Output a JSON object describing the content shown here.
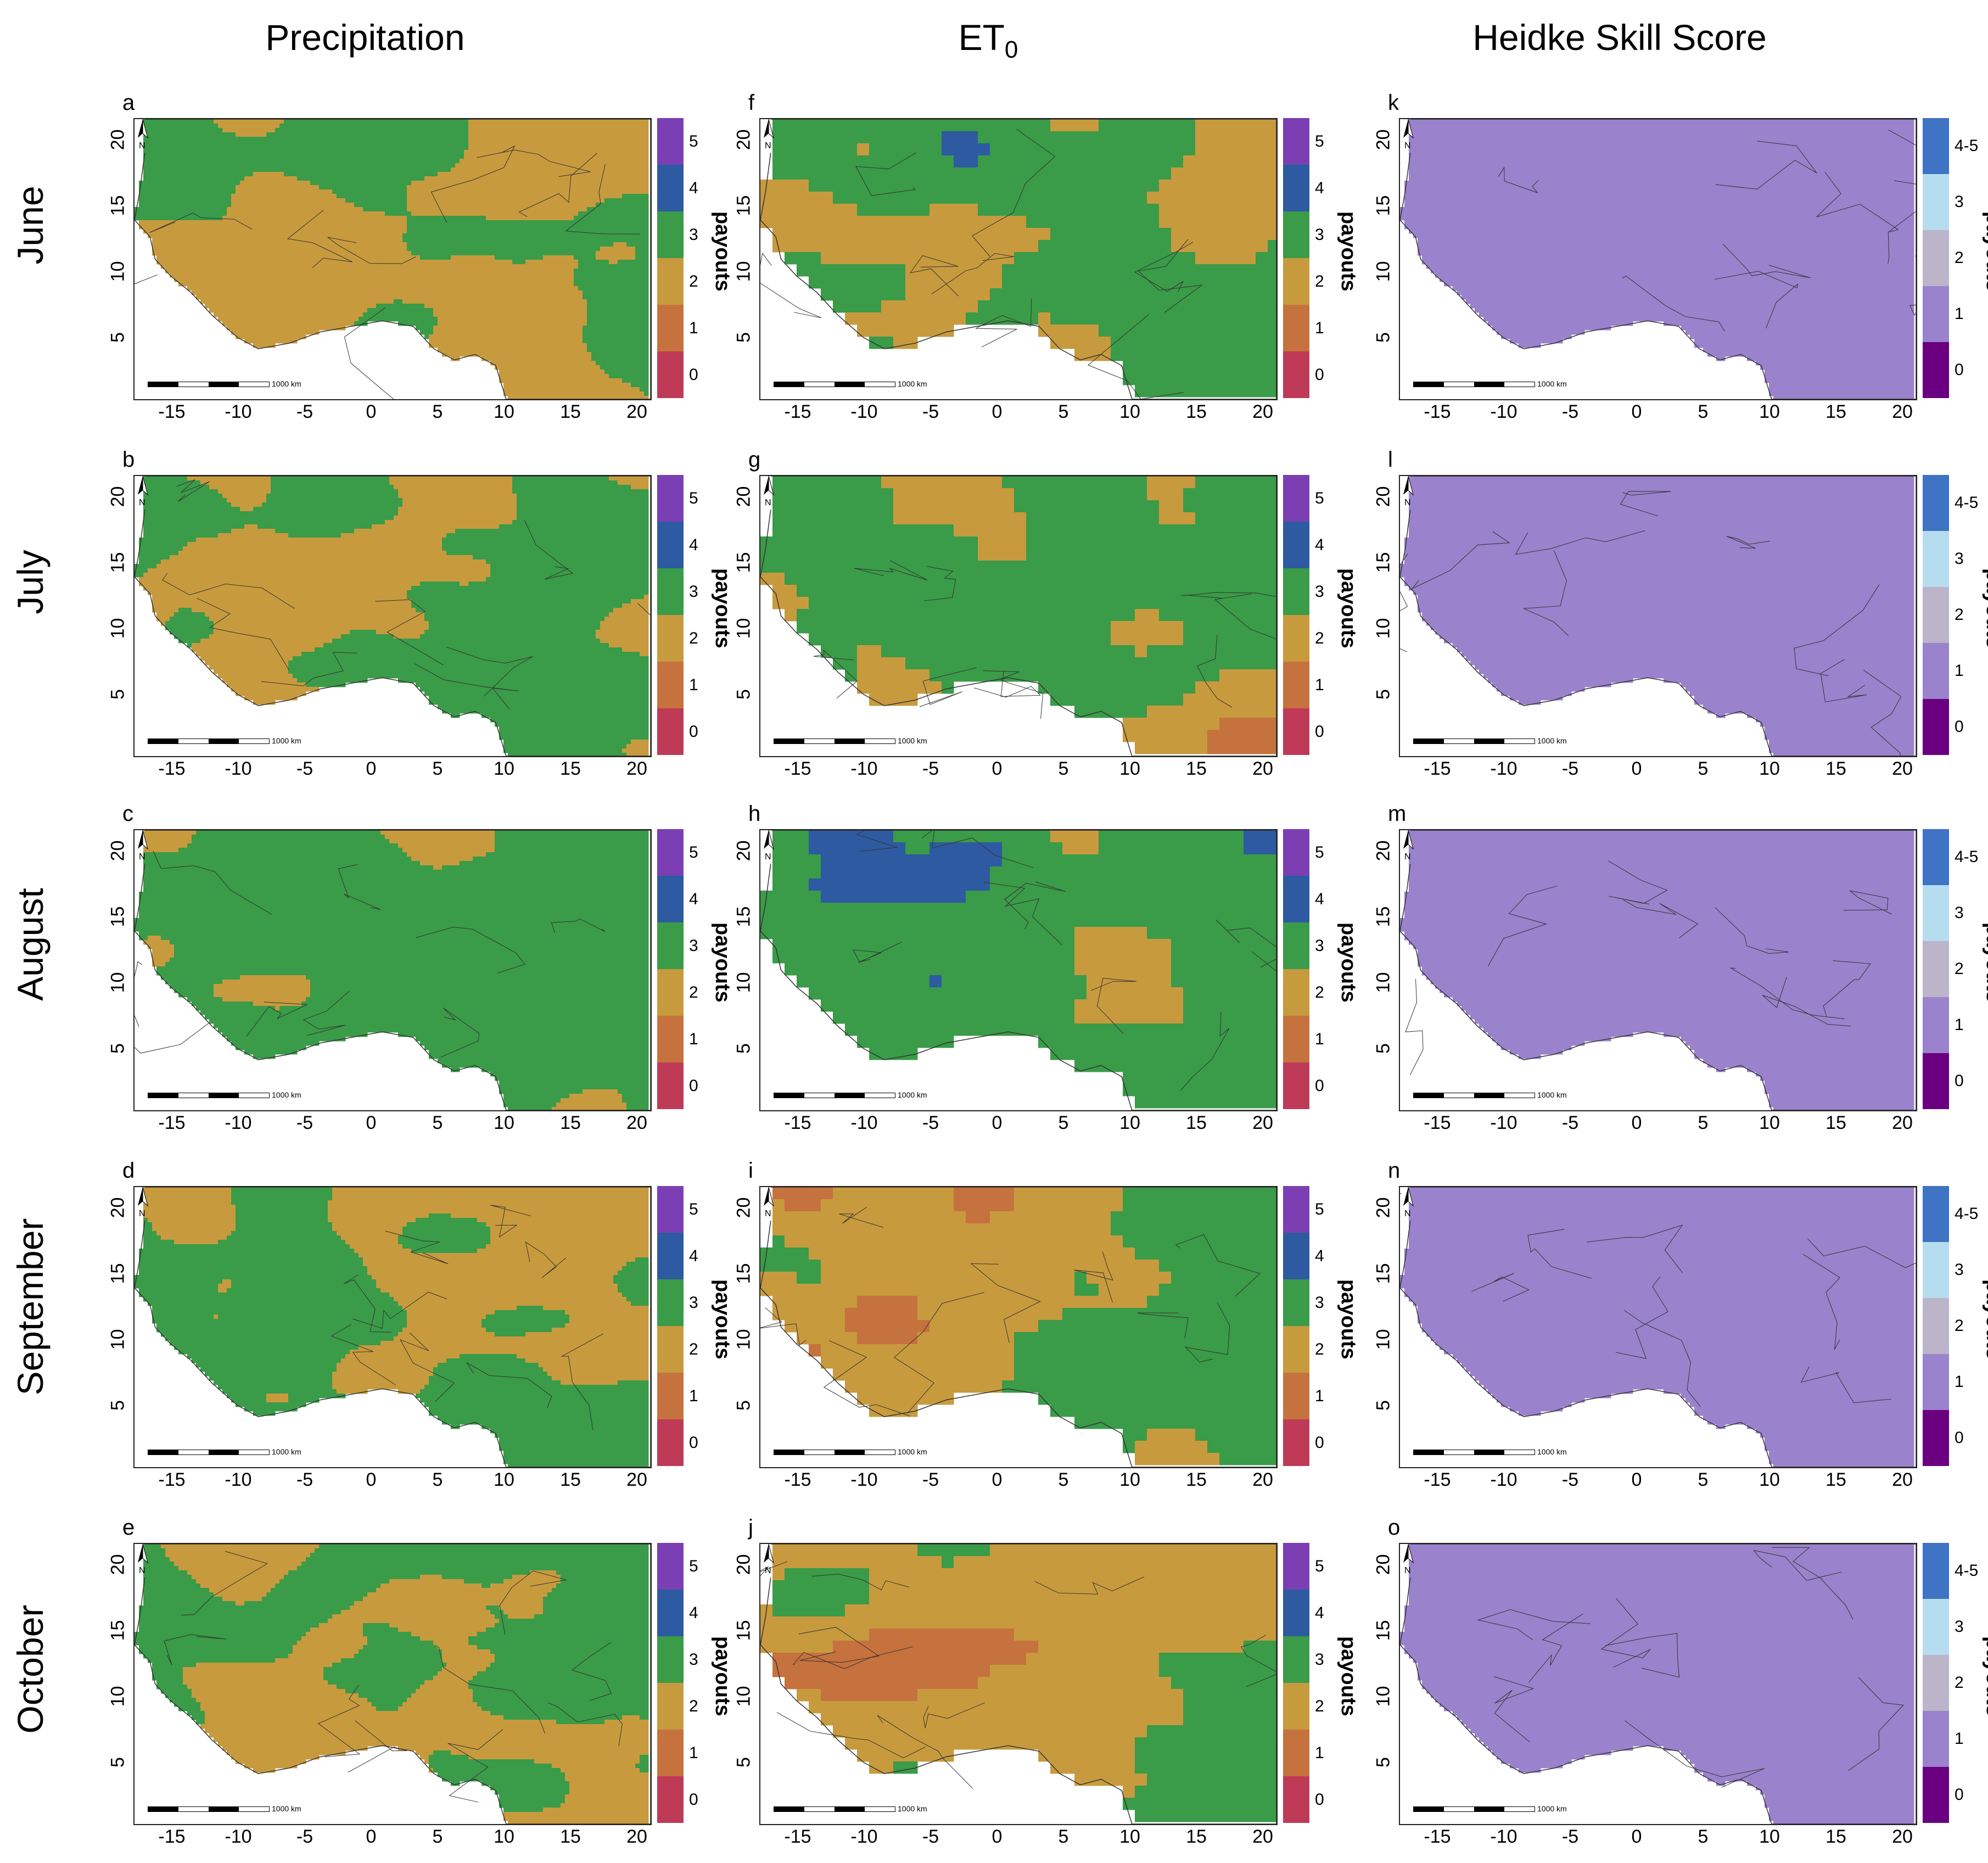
{
  "columns": [
    {
      "title": "Precipitation",
      "sub": ""
    },
    {
      "title": "ET",
      "sub": "0"
    },
    {
      "title": "Heidke Skill Score",
      "sub": ""
    }
  ],
  "rows": [
    "June",
    "July",
    "August",
    "September",
    "October"
  ],
  "panel_letters": [
    [
      "a",
      "f",
      "k"
    ],
    [
      "b",
      "g",
      "l"
    ],
    [
      "c",
      "h",
      "m"
    ],
    [
      "d",
      "i",
      "n"
    ],
    [
      "e",
      "j",
      "o"
    ]
  ],
  "x_ticks": [
    "-15",
    "-10",
    "-5",
    "0",
    "5",
    "10",
    "15",
    "20"
  ],
  "y_ticks": [
    "20",
    "15",
    "10",
    "5"
  ],
  "scale_label": "1000 km",
  "north_label": "N",
  "legend_title": "payouts",
  "legend_payouts": [
    "5",
    "4",
    "3",
    "2",
    "1",
    "0"
  ],
  "legend_hss": [
    "4-5",
    "3",
    "2",
    "1",
    "0"
  ],
  "colors": {
    "payout_5": "#7b3fb3",
    "payout_4": "#2d5aa0",
    "payout_3": "#3a9b48",
    "payout_2": "#c89a3e",
    "payout_1": "#c5723e",
    "payout_0": "#bf3a57",
    "hss_45": "#3f73c3",
    "hss_3": "#b6dcef",
    "hss_2": "#bcb4c8",
    "hss_1": "#9a82cc",
    "hss_0": "#6a0080"
  }
}
